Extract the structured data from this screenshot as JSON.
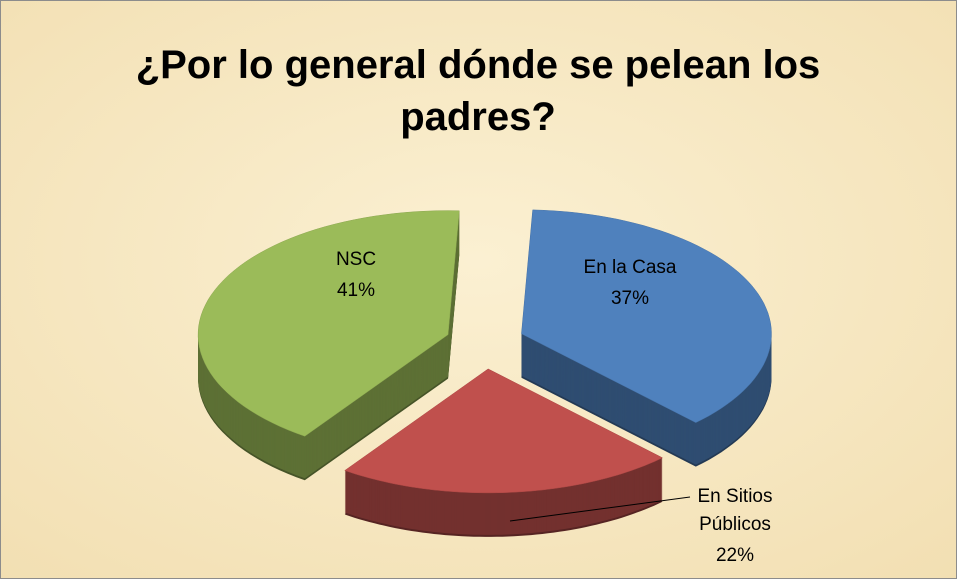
{
  "chart_data": {
    "type": "pie",
    "title": "¿Por lo general dónde se pelean los padres?",
    "categories": [
      "En la Casa",
      "En Sitios Públicos",
      "NSC"
    ],
    "values": [
      37,
      22,
      41
    ],
    "value_labels": [
      "37%",
      "22%",
      "41%"
    ],
    "colors": [
      "#4f81bd",
      "#c0504d",
      "#9bbb59"
    ],
    "exploded": true,
    "three_d": true
  }
}
